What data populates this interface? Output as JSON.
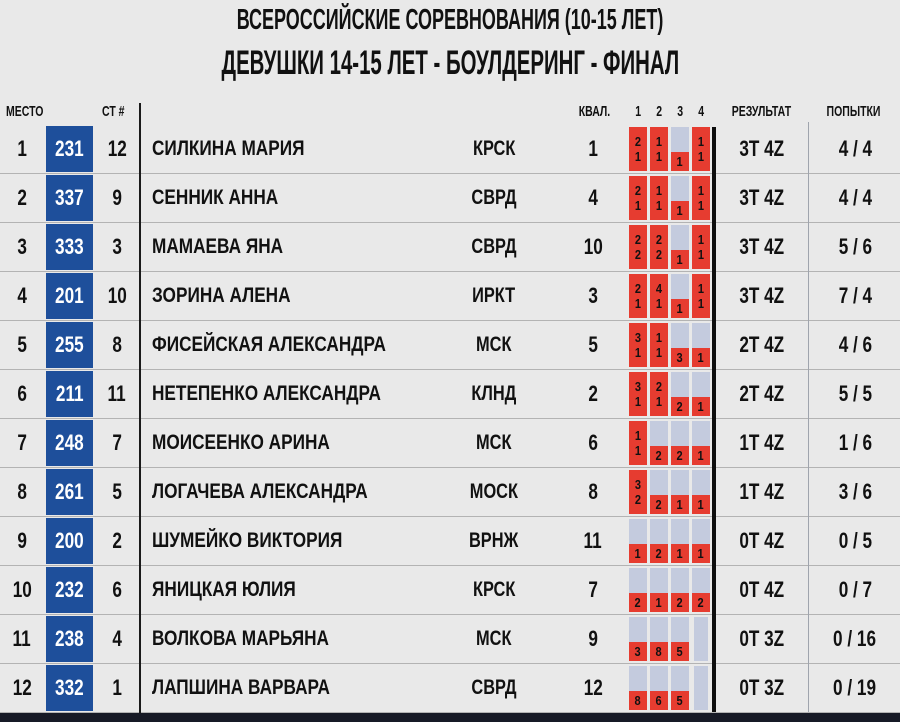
{
  "header": {
    "title": "ВСЕРОССИЙСКИЕ СОРЕВНОВАНИЯ (10-15 ЛЕТ)",
    "subtitle": "ДЕВУШКИ 14-15 ЛЕТ - БОУЛДЕРИНГ - ФИНАЛ"
  },
  "columns": {
    "place": "МЕСТО",
    "start_number": "СТ #",
    "qualification": "КВАЛ.",
    "boulders": [
      "1",
      "2",
      "3",
      "4"
    ],
    "result": "РЕЗУЛЬТАТ",
    "attempts": "ПОПЫТКИ"
  },
  "colors": {
    "bib_blue": "#1e4f9b",
    "top_red": "#e63c30",
    "cell_gray": "#c4cbde",
    "page_bg": "#e9e9e9",
    "bottom_bar": "#171a26"
  },
  "rows": [
    {
      "place": "1",
      "bib": "231",
      "start": "12",
      "name": "СИЛКИНА МАРИЯ",
      "region": "КРСК",
      "qual": "1",
      "boulders": [
        {
          "top": "2",
          "zone": "1"
        },
        {
          "top": "1",
          "zone": "1"
        },
        {
          "zone": "1"
        },
        {
          "top": "1",
          "zone": "1"
        }
      ],
      "result": "3T 4Z",
      "attempts": "4 / 4"
    },
    {
      "place": "2",
      "bib": "337",
      "start": "9",
      "name": "СЕННИК АННА",
      "region": "СВРД",
      "qual": "4",
      "boulders": [
        {
          "top": "2",
          "zone": "1"
        },
        {
          "top": "1",
          "zone": "1"
        },
        {
          "zone": "1"
        },
        {
          "top": "1",
          "zone": "1"
        }
      ],
      "result": "3T 4Z",
      "attempts": "4 / 4"
    },
    {
      "place": "3",
      "bib": "333",
      "start": "3",
      "name": "МАМАЕВА ЯНА",
      "region": "СВРД",
      "qual": "10",
      "boulders": [
        {
          "top": "2",
          "zone": "2"
        },
        {
          "top": "2",
          "zone": "2"
        },
        {
          "zone": "1"
        },
        {
          "top": "1",
          "zone": "1"
        }
      ],
      "result": "3T 4Z",
      "attempts": "5 / 6"
    },
    {
      "place": "4",
      "bib": "201",
      "start": "10",
      "name": "ЗОРИНА АЛЕНА",
      "region": "ИРКТ",
      "qual": "3",
      "boulders": [
        {
          "top": "2",
          "zone": "1"
        },
        {
          "top": "4",
          "zone": "1"
        },
        {
          "zone": "1"
        },
        {
          "top": "1",
          "zone": "1"
        }
      ],
      "result": "3T 4Z",
      "attempts": "7 / 4"
    },
    {
      "place": "5",
      "bib": "255",
      "start": "8",
      "name": "ФИСЕЙСКАЯ АЛЕКСАНДРА",
      "region": "МСК",
      "qual": "5",
      "boulders": [
        {
          "top": "3",
          "zone": "1"
        },
        {
          "top": "1",
          "zone": "1"
        },
        {
          "zone": "3"
        },
        {
          "zone": "1"
        }
      ],
      "result": "2T 4Z",
      "attempts": "4 / 6"
    },
    {
      "place": "6",
      "bib": "211",
      "start": "11",
      "name": "НЕТЕПЕНКО АЛЕКСАНДРА",
      "region": "КЛНД",
      "qual": "2",
      "boulders": [
        {
          "top": "3",
          "zone": "1"
        },
        {
          "top": "2",
          "zone": "1"
        },
        {
          "zone": "2"
        },
        {
          "zone": "1"
        }
      ],
      "result": "2T 4Z",
      "attempts": "5 / 5"
    },
    {
      "place": "7",
      "bib": "248",
      "start": "7",
      "name": "МОИСЕЕНКО АРИНА",
      "region": "МСК",
      "qual": "6",
      "boulders": [
        {
          "top": "1",
          "zone": "1"
        },
        {
          "zone": "2"
        },
        {
          "zone": "2"
        },
        {
          "zone": "1"
        }
      ],
      "result": "1T 4Z",
      "attempts": "1 / 6"
    },
    {
      "place": "8",
      "bib": "261",
      "start": "5",
      "name": "ЛОГАЧЕВА АЛЕКСАНДРА",
      "region": "МОСК",
      "qual": "8",
      "boulders": [
        {
          "top": "3",
          "zone": "2"
        },
        {
          "zone": "2"
        },
        {
          "zone": "1"
        },
        {
          "zone": "1"
        }
      ],
      "result": "1T 4Z",
      "attempts": "3 / 6"
    },
    {
      "place": "9",
      "bib": "200",
      "start": "2",
      "name": "ШУМЕЙКО ВИКТОРИЯ",
      "region": "ВРНЖ",
      "qual": "11",
      "boulders": [
        {
          "zone": "1"
        },
        {
          "zone": "2"
        },
        {
          "zone": "1"
        },
        {
          "zone": "1"
        }
      ],
      "result": "0T 4Z",
      "attempts": "0 / 5"
    },
    {
      "place": "10",
      "bib": "232",
      "start": "6",
      "name": "ЯНИЦКАЯ ЮЛИЯ",
      "region": "КРСК",
      "qual": "7",
      "boulders": [
        {
          "zone": "2"
        },
        {
          "zone": "1"
        },
        {
          "zone": "2"
        },
        {
          "zone": "2"
        }
      ],
      "result": "0T 4Z",
      "attempts": "0 / 7"
    },
    {
      "place": "11",
      "bib": "238",
      "start": "4",
      "name": "ВОЛКОВА МАРЬЯНА",
      "region": "МСК",
      "qual": "9",
      "boulders": [
        {
          "zone": "3"
        },
        {
          "zone": "8"
        },
        {
          "zone": "5"
        },
        {}
      ],
      "result": "0T 3Z",
      "attempts": "0 / 16"
    },
    {
      "place": "12",
      "bib": "332",
      "start": "1",
      "name": "ЛАПШИНА ВАРВАРА",
      "region": "СВРД",
      "qual": "12",
      "boulders": [
        {
          "zone": "8"
        },
        {
          "zone": "6"
        },
        {
          "zone": "5"
        },
        {}
      ],
      "result": "0T 3Z",
      "attempts": "0 / 19"
    }
  ]
}
